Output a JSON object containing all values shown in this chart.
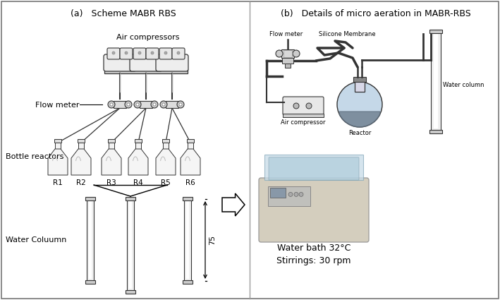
{
  "title_a": "(a)   Scheme MABR RBS",
  "title_b": "(b)   Details of micro aeration in MABR-RBS",
  "label_air_compressors": "Air compressors",
  "label_flow_meter_a": "Flow meter",
  "label_bottle_reactors": "Bottle reactors",
  "label_water_column_a": "Water Coluumn",
  "label_reactors": [
    "R1",
    "R2",
    "R3",
    "R4",
    "R5",
    "R6"
  ],
  "label_75": "75",
  "label_flow_meter_b": "Flow meter",
  "label_silicone_membrane": "Silicone Membrane",
  "label_air_compressor_b": "Air compressor",
  "label_reactor_b": "Reactor",
  "label_water_column_b": "Water column",
  "label_water_bath": "Water bath 32°C\nStirrings: 30 rpm",
  "bg_color": "#ffffff",
  "lc": "#555555",
  "lc_dark": "#333333",
  "fig_width": 7.09,
  "fig_height": 4.25,
  "dpi": 100
}
